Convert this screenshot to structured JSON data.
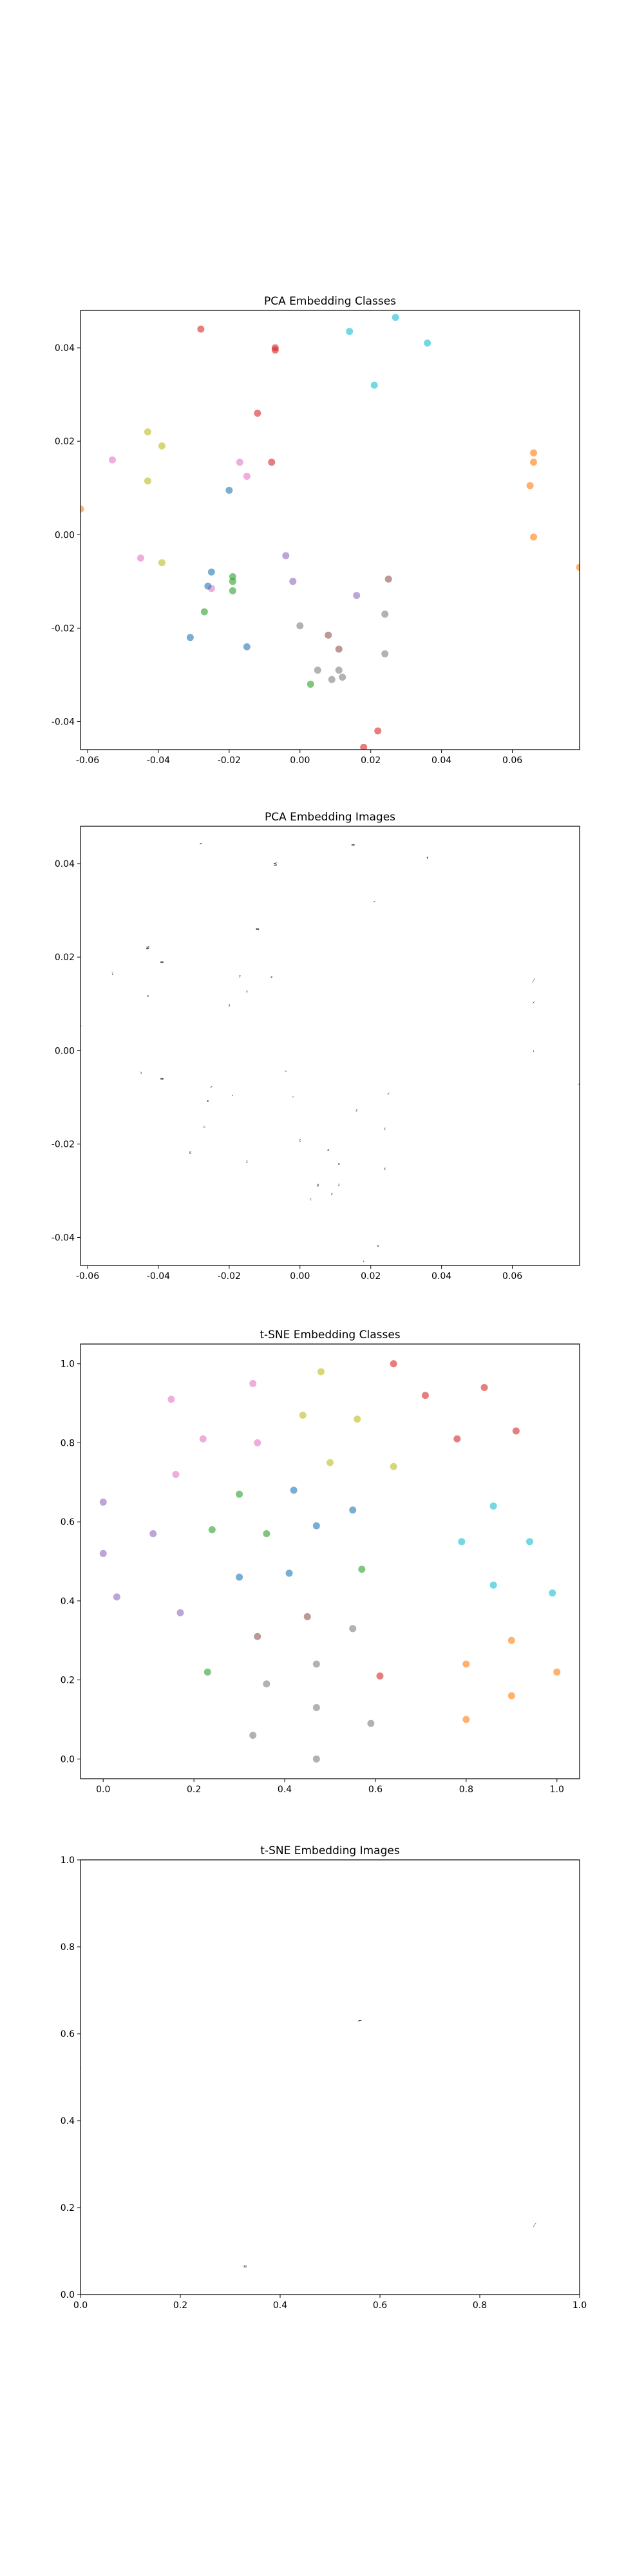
{
  "chart_data": [
    {
      "type": "scatter",
      "title": "PCA Embedding Classes",
      "xlim": [
        -0.062,
        0.079
      ],
      "ylim": [
        -0.046,
        0.048
      ],
      "xticks": [
        "-0.06",
        "-0.04",
        "-0.02",
        "0.00",
        "0.02",
        "0.04",
        "0.06"
      ],
      "xtick_values": [
        -0.06,
        -0.04,
        -0.02,
        0.0,
        0.02,
        0.04,
        0.06
      ],
      "yticks": [
        "0.04",
        "0.02",
        "0.00",
        "-0.02",
        "-0.04"
      ],
      "ytick_values": [
        0.04,
        0.02,
        0.0,
        -0.02,
        -0.04
      ],
      "points": [
        {
          "x": -0.028,
          "y": 0.044,
          "c": "#d62728"
        },
        {
          "x": -0.007,
          "y": 0.04,
          "c": "#d62728"
        },
        {
          "x": -0.007,
          "y": 0.0395,
          "c": "#d62728"
        },
        {
          "x": -0.012,
          "y": 0.026,
          "c": "#d62728"
        },
        {
          "x": -0.008,
          "y": 0.0155,
          "c": "#d62728"
        },
        {
          "x": 0.022,
          "y": -0.042,
          "c": "#d62728"
        },
        {
          "x": 0.014,
          "y": 0.0435,
          "c": "#17becf"
        },
        {
          "x": 0.027,
          "y": 0.0465,
          "c": "#17becf"
        },
        {
          "x": 0.036,
          "y": 0.041,
          "c": "#17becf"
        },
        {
          "x": 0.021,
          "y": 0.032,
          "c": "#17becf"
        },
        {
          "x": -0.043,
          "y": 0.022,
          "c": "#bcbd22"
        },
        {
          "x": -0.039,
          "y": 0.019,
          "c": "#bcbd22"
        },
        {
          "x": -0.043,
          "y": 0.0115,
          "c": "#bcbd22"
        },
        {
          "x": -0.039,
          "y": -0.006,
          "c": "#bcbd22"
        },
        {
          "x": -0.053,
          "y": 0.016,
          "c": "#e377c2"
        },
        {
          "x": -0.017,
          "y": 0.0155,
          "c": "#e377c2"
        },
        {
          "x": -0.015,
          "y": 0.0125,
          "c": "#e377c2"
        },
        {
          "x": -0.045,
          "y": -0.005,
          "c": "#e377c2"
        },
        {
          "x": -0.025,
          "y": -0.0115,
          "c": "#e377c2"
        },
        {
          "x": -0.02,
          "y": 0.0095,
          "c": "#1f77b4"
        },
        {
          "x": -0.025,
          "y": -0.008,
          "c": "#1f77b4"
        },
        {
          "x": -0.026,
          "y": -0.011,
          "c": "#1f77b4"
        },
        {
          "x": -0.031,
          "y": -0.022,
          "c": "#1f77b4"
        },
        {
          "x": -0.015,
          "y": -0.024,
          "c": "#1f77b4"
        },
        {
          "x": -0.019,
          "y": -0.009,
          "c": "#2ca02c"
        },
        {
          "x": -0.019,
          "y": -0.01,
          "c": "#2ca02c"
        },
        {
          "x": -0.019,
          "y": -0.012,
          "c": "#2ca02c"
        },
        {
          "x": -0.027,
          "y": -0.0165,
          "c": "#2ca02c"
        },
        {
          "x": 0.003,
          "y": -0.032,
          "c": "#2ca02c"
        },
        {
          "x": -0.004,
          "y": -0.0045,
          "c": "#9467bd"
        },
        {
          "x": -0.002,
          "y": -0.01,
          "c": "#9467bd"
        },
        {
          "x": 0.016,
          "y": -0.013,
          "c": "#9467bd"
        },
        {
          "x": 0.025,
          "y": -0.0095,
          "c": "#8c564b"
        },
        {
          "x": 0.008,
          "y": -0.0215,
          "c": "#8c564b"
        },
        {
          "x": 0.011,
          "y": -0.0245,
          "c": "#8c564b"
        },
        {
          "x": 0.024,
          "y": -0.017,
          "c": "#7f7f7f"
        },
        {
          "x": 0.0,
          "y": -0.0195,
          "c": "#7f7f7f"
        },
        {
          "x": 0.024,
          "y": -0.0255,
          "c": "#7f7f7f"
        },
        {
          "x": 0.005,
          "y": -0.029,
          "c": "#7f7f7f"
        },
        {
          "x": 0.011,
          "y": -0.029,
          "c": "#7f7f7f"
        },
        {
          "x": 0.012,
          "y": -0.0305,
          "c": "#7f7f7f"
        },
        {
          "x": 0.009,
          "y": -0.031,
          "c": "#7f7f7f"
        },
        {
          "x": 0.066,
          "y": 0.0175,
          "c": "#ff7f0e"
        },
        {
          "x": 0.066,
          "y": 0.0155,
          "c": "#ff7f0e"
        },
        {
          "x": 0.065,
          "y": 0.0105,
          "c": "#ff7f0e"
        },
        {
          "x": 0.066,
          "y": -0.0005,
          "c": "#ff7f0e"
        },
        {
          "x": 0.079,
          "y": -0.007,
          "c": "#ff7f0e"
        },
        {
          "x": -0.062,
          "y": 0.0055,
          "c": "#ff7f0e"
        },
        {
          "x": 0.018,
          "y": -0.0455,
          "c": "#d62728"
        }
      ]
    },
    {
      "type": "scatter",
      "title": "PCA Embedding Images",
      "xlim": [
        -0.062,
        0.079
      ],
      "ylim": [
        -0.046,
        0.048
      ],
      "xticks": [
        "-0.06",
        "-0.04",
        "-0.02",
        "0.00",
        "0.02",
        "0.04",
        "0.06"
      ],
      "xtick_values": [
        -0.06,
        -0.04,
        -0.02,
        0.0,
        0.02,
        0.04,
        0.06
      ],
      "yticks": [
        "0.04",
        "0.02",
        "0.00",
        "-0.02",
        "-0.04"
      ],
      "ytick_values": [
        0.04,
        0.02,
        0.0,
        -0.02,
        -0.04
      ],
      "points": [
        {
          "x": -0.028,
          "y": 0.044,
          "g": "⁼"
        },
        {
          "x": -0.007,
          "y": 0.04,
          "g": "≤"
        },
        {
          "x": 0.015,
          "y": 0.044,
          "g": "≈"
        },
        {
          "x": 0.03,
          "y": 0.048,
          "g": "ʳ"
        },
        {
          "x": 0.036,
          "y": 0.041,
          "g": "ᵗ"
        },
        {
          "x": 0.021,
          "y": 0.032,
          "g": "-"
        },
        {
          "x": -0.012,
          "y": 0.026,
          "g": "≈"
        },
        {
          "x": -0.043,
          "y": 0.022,
          "g": "≠"
        },
        {
          "x": -0.039,
          "y": 0.019,
          "g": "≈"
        },
        {
          "x": -0.053,
          "y": 0.016,
          "g": "ˀ"
        },
        {
          "x": -0.017,
          "y": 0.0155,
          "g": "ˀ"
        },
        {
          "x": -0.008,
          "y": 0.0155,
          "g": "ᵋ"
        },
        {
          "x": -0.015,
          "y": 0.0125,
          "g": "ᵞ"
        },
        {
          "x": -0.043,
          "y": 0.0115,
          "g": "ᵓ"
        },
        {
          "x": -0.02,
          "y": 0.0095,
          "g": "ᵓ"
        },
        {
          "x": 0.066,
          "y": 0.015,
          "g": "⁄"
        },
        {
          "x": 0.066,
          "y": 0.01,
          "g": "ᐟ"
        },
        {
          "x": 0.066,
          "y": -0.0005,
          "g": "ˈ"
        },
        {
          "x": -0.062,
          "y": 0.005,
          "g": "ᶜ"
        },
        {
          "x": -0.045,
          "y": -0.005,
          "g": "ᵓ"
        },
        {
          "x": -0.039,
          "y": -0.006,
          "g": "≈"
        },
        {
          "x": -0.004,
          "y": -0.0045,
          "g": "ᵕ"
        },
        {
          "x": -0.025,
          "y": -0.008,
          "g": "ᐟ"
        },
        {
          "x": -0.026,
          "y": -0.011,
          "g": "ᶦ"
        },
        {
          "x": -0.019,
          "y": -0.01,
          "g": "ʹ"
        },
        {
          "x": -0.002,
          "y": -0.01,
          "g": "ᵕ"
        },
        {
          "x": 0.016,
          "y": -0.013,
          "g": "ᶻ"
        },
        {
          "x": 0.025,
          "y": -0.0095,
          "g": "ᐟ"
        },
        {
          "x": 0.024,
          "y": -0.017,
          "g": "ᶦ"
        },
        {
          "x": -0.027,
          "y": -0.0165,
          "g": "ᶜ"
        },
        {
          "x": 0.0,
          "y": -0.0195,
          "g": "ᶜ"
        },
        {
          "x": -0.031,
          "y": -0.022,
          "g": "ᵍ"
        },
        {
          "x": 0.008,
          "y": -0.0215,
          "g": "ᶻ"
        },
        {
          "x": 0.011,
          "y": -0.0245,
          "g": "ᶻ"
        },
        {
          "x": -0.015,
          "y": -0.024,
          "g": "ᶻ"
        },
        {
          "x": 0.024,
          "y": -0.0255,
          "g": "ᵋ"
        },
        {
          "x": 0.005,
          "y": -0.029,
          "g": "ᵍ"
        },
        {
          "x": 0.011,
          "y": -0.029,
          "g": "ᶻ"
        },
        {
          "x": 0.009,
          "y": -0.031,
          "g": "ᶻ"
        },
        {
          "x": 0.003,
          "y": -0.032,
          "g": "ᶜ"
        },
        {
          "x": 0.079,
          "y": -0.007,
          "g": "⁄"
        },
        {
          "x": 0.022,
          "y": -0.042,
          "g": "ᵌ"
        },
        {
          "x": 0.018,
          "y": -0.0455,
          "g": "ʾ"
        }
      ]
    },
    {
      "type": "scatter",
      "title": "t-SNE Embedding Classes",
      "xlim": [
        -0.05,
        1.05
      ],
      "ylim": [
        -0.05,
        1.05
      ],
      "xticks": [
        "0.0",
        "0.2",
        "0.4",
        "0.6",
        "0.8",
        "1.0"
      ],
      "xtick_values": [
        0.0,
        0.2,
        0.4,
        0.6,
        0.8,
        1.0
      ],
      "yticks": [
        "1.0",
        "0.8",
        "0.6",
        "0.4",
        "0.2",
        "0.0"
      ],
      "ytick_values": [
        1.0,
        0.8,
        0.6,
        0.4,
        0.2,
        0.0
      ],
      "points": [
        {
          "x": 0.64,
          "y": 1.0,
          "c": "#d62728"
        },
        {
          "x": 0.71,
          "y": 0.92,
          "c": "#d62728"
        },
        {
          "x": 0.84,
          "y": 0.94,
          "c": "#d62728"
        },
        {
          "x": 0.78,
          "y": 0.81,
          "c": "#d62728"
        },
        {
          "x": 0.91,
          "y": 0.83,
          "c": "#d62728"
        },
        {
          "x": 0.61,
          "y": 0.21,
          "c": "#d62728"
        },
        {
          "x": 0.15,
          "y": 0.91,
          "c": "#e377c2"
        },
        {
          "x": 0.33,
          "y": 0.95,
          "c": "#e377c2"
        },
        {
          "x": 0.22,
          "y": 0.81,
          "c": "#e377c2"
        },
        {
          "x": 0.34,
          "y": 0.8,
          "c": "#e377c2"
        },
        {
          "x": 0.16,
          "y": 0.72,
          "c": "#e377c2"
        },
        {
          "x": 0.48,
          "y": 0.98,
          "c": "#bcbd22"
        },
        {
          "x": 0.44,
          "y": 0.87,
          "c": "#bcbd22"
        },
        {
          "x": 0.56,
          "y": 0.86,
          "c": "#bcbd22"
        },
        {
          "x": 0.5,
          "y": 0.75,
          "c": "#bcbd22"
        },
        {
          "x": 0.64,
          "y": 0.74,
          "c": "#bcbd22"
        },
        {
          "x": 0.0,
          "y": 0.65,
          "c": "#9467bd"
        },
        {
          "x": 0.0,
          "y": 0.52,
          "c": "#9467bd"
        },
        {
          "x": 0.11,
          "y": 0.57,
          "c": "#9467bd"
        },
        {
          "x": 0.03,
          "y": 0.41,
          "c": "#9467bd"
        },
        {
          "x": 0.17,
          "y": 0.37,
          "c": "#9467bd"
        },
        {
          "x": 0.3,
          "y": 0.67,
          "c": "#2ca02c"
        },
        {
          "x": 0.24,
          "y": 0.58,
          "c": "#2ca02c"
        },
        {
          "x": 0.36,
          "y": 0.57,
          "c": "#2ca02c"
        },
        {
          "x": 0.57,
          "y": 0.48,
          "c": "#2ca02c"
        },
        {
          "x": 0.23,
          "y": 0.22,
          "c": "#2ca02c"
        },
        {
          "x": 0.42,
          "y": 0.68,
          "c": "#1f77b4"
        },
        {
          "x": 0.55,
          "y": 0.63,
          "c": "#1f77b4"
        },
        {
          "x": 0.47,
          "y": 0.59,
          "c": "#1f77b4"
        },
        {
          "x": 0.3,
          "y": 0.46,
          "c": "#1f77b4"
        },
        {
          "x": 0.41,
          "y": 0.47,
          "c": "#1f77b4"
        },
        {
          "x": 0.86,
          "y": 0.64,
          "c": "#17becf"
        },
        {
          "x": 0.79,
          "y": 0.55,
          "c": "#17becf"
        },
        {
          "x": 0.94,
          "y": 0.55,
          "c": "#17becf"
        },
        {
          "x": 0.86,
          "y": 0.44,
          "c": "#17becf"
        },
        {
          "x": 0.99,
          "y": 0.42,
          "c": "#17becf"
        },
        {
          "x": 0.34,
          "y": 0.31,
          "c": "#8c564b"
        },
        {
          "x": 0.45,
          "y": 0.36,
          "c": "#8c564b"
        },
        {
          "x": 0.55,
          "y": 0.33,
          "c": "#7f7f7f"
        },
        {
          "x": 0.47,
          "y": 0.24,
          "c": "#7f7f7f"
        },
        {
          "x": 0.36,
          "y": 0.19,
          "c": "#7f7f7f"
        },
        {
          "x": 0.47,
          "y": 0.13,
          "c": "#7f7f7f"
        },
        {
          "x": 0.33,
          "y": 0.06,
          "c": "#7f7f7f"
        },
        {
          "x": 0.59,
          "y": 0.09,
          "c": "#7f7f7f"
        },
        {
          "x": 0.47,
          "y": 0.0,
          "c": "#7f7f7f"
        },
        {
          "x": 0.9,
          "y": 0.3,
          "c": "#ff7f0e"
        },
        {
          "x": 0.8,
          "y": 0.24,
          "c": "#ff7f0e"
        },
        {
          "x": 1.0,
          "y": 0.22,
          "c": "#ff7f0e"
        },
        {
          "x": 0.9,
          "y": 0.16,
          "c": "#ff7f0e"
        },
        {
          "x": 0.8,
          "y": 0.1,
          "c": "#ff7f0e"
        }
      ]
    },
    {
      "type": "scatter",
      "title": "t-SNE Embedding Images",
      "xlim": [
        0.0,
        1.0
      ],
      "ylim": [
        0.0,
        1.0
      ],
      "xticks": [
        "0.0",
        "0.2",
        "0.4",
        "0.6",
        "0.8",
        "1.0"
      ],
      "xtick_values": [
        0.0,
        0.2,
        0.4,
        0.6,
        0.8,
        1.0
      ],
      "yticks": [
        "1.0",
        "0.8",
        "0.6",
        "0.4",
        "0.2",
        "0.0"
      ],
      "ytick_values": [
        1.0,
        0.8,
        0.6,
        0.4,
        0.2,
        0.0
      ],
      "points": [
        {
          "x": 0.56,
          "y": 0.63,
          "g": "⌐"
        },
        {
          "x": 0.0,
          "y": 0.52,
          "g": "ᶜ"
        },
        {
          "x": 0.91,
          "y": 0.16,
          "g": "⁄"
        },
        {
          "x": 0.33,
          "y": 0.065,
          "g": "≈"
        }
      ]
    }
  ]
}
